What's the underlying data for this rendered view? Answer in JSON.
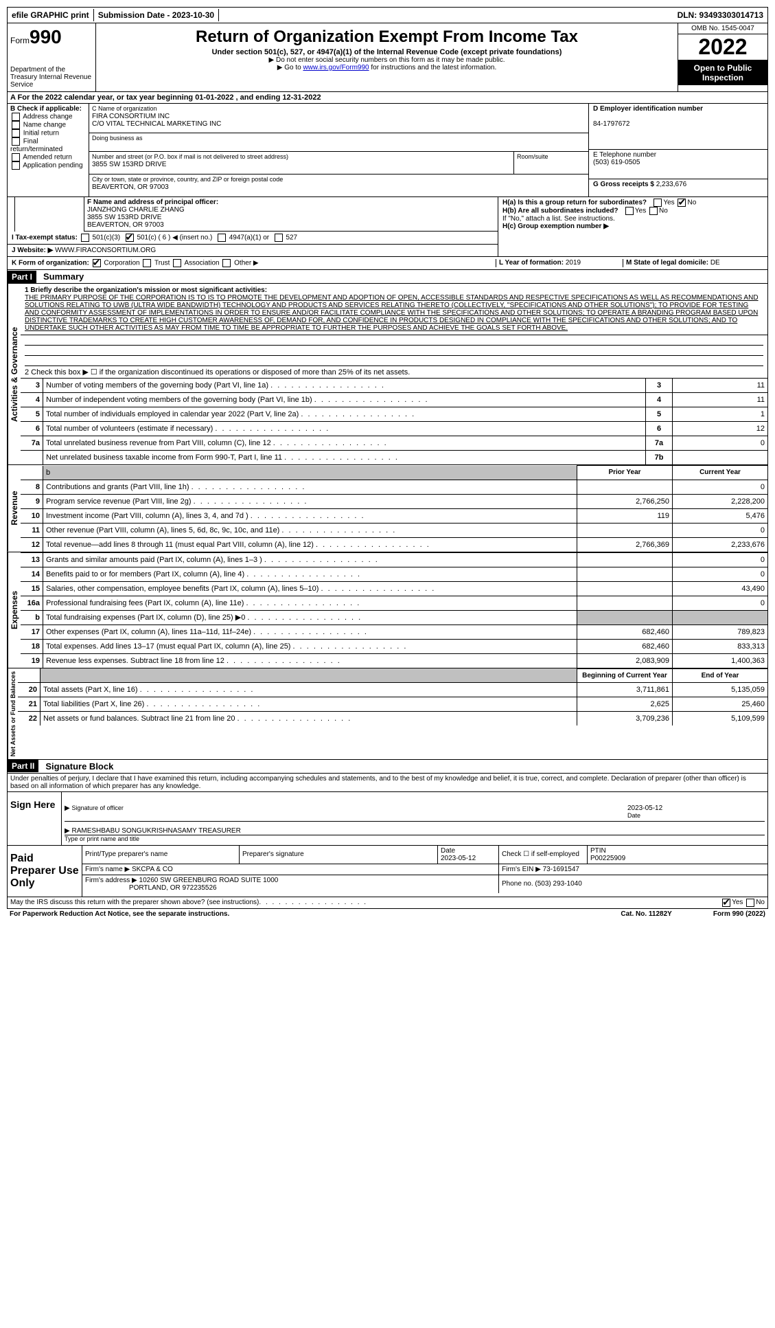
{
  "topbar": {
    "efile": "efile GRAPHIC print",
    "submission": "Submission Date - 2023-10-30",
    "dln": "DLN: 93493303014713"
  },
  "header": {
    "form_prefix": "Form",
    "form_number": "990",
    "dept": "Department of the Treasury Internal Revenue Service",
    "title": "Return of Organization Exempt From Income Tax",
    "subtitle": "Under section 501(c), 527, or 4947(a)(1) of the Internal Revenue Code (except private foundations)",
    "note1": "▶ Do not enter social security numbers on this form as it may be made public.",
    "note2_pre": "▶ Go to ",
    "note2_link": "www.irs.gov/Form990",
    "note2_post": " for instructions and the latest information.",
    "omb": "OMB No. 1545-0047",
    "year": "2022",
    "open": "Open to Public Inspection"
  },
  "sectionA": "A  For the 2022 calendar year, or tax year beginning 01-01-2022    , and ending 12-31-2022",
  "B": {
    "label": "B Check if applicable:",
    "items": [
      "Address change",
      "Name change",
      "Initial return",
      "Final return/terminated",
      "Amended return",
      "Application pending"
    ]
  },
  "C": {
    "name_label": "C Name of organization",
    "name1": "FIRA CONSORTIUM INC",
    "name2": "C/O VITAL TECHNICAL MARKETING INC",
    "dba_label": "Doing business as",
    "addr_label": "Number and street (or P.O. box if mail is not delivered to street address)",
    "addr": "3855 SW 153RD DRIVE",
    "room_label": "Room/suite",
    "city_label": "City or town, state or province, country, and ZIP or foreign postal code",
    "city": "BEAVERTON, OR  97003"
  },
  "D": {
    "label": "D Employer identification number",
    "ein": "84-1797672"
  },
  "E": {
    "label": "E Telephone number",
    "tel": "(503) 619-0505"
  },
  "G": {
    "label": "G Gross receipts $",
    "val": "2,233,676"
  },
  "F": {
    "label": "F Name and address of principal officer:",
    "name": "JIANZHONG CHARLIE ZHANG",
    "addr1": "3855 SW 153RD DRIVE",
    "addr2": "BEAVERTON, OR  97003"
  },
  "H": {
    "a_label": "H(a)  Is this a group return for subordinates?",
    "b_label": "H(b)  Are all subordinates included?",
    "note": "If \"No,\" attach a list. See instructions.",
    "c_label": "H(c)  Group exemption number ▶"
  },
  "I": {
    "label": "I    Tax-exempt status:",
    "opt1": "501(c)(3)",
    "opt2_pre": "501(c) (",
    "opt2_num": "6",
    "opt2_post": ") ◀ (insert no.)",
    "opt3": "4947(a)(1) or",
    "opt4": "527"
  },
  "J": {
    "label": "J   Website: ▶",
    "val": "WWW.FIRACONSORTIUM.ORG"
  },
  "K": {
    "label": "K Form of organization:",
    "opts": [
      "Corporation",
      "Trust",
      "Association",
      "Other ▶"
    ]
  },
  "L": {
    "label": "L Year of formation:",
    "val": "2019"
  },
  "M": {
    "label": "M State of legal domicile:",
    "val": "DE"
  },
  "part1": {
    "header": "Part I",
    "title": "Summary",
    "q1_label": "1   Briefly describe the organization's mission or most significant activities:",
    "mission": "THE PRIMARY PURPOSE OF THE CORPORATION IS TO IS TO PROMOTE THE DEVELOPMENT AND ADOPTION OF OPEN, ACCESSIBLE STANDARDS AND RESPECTIVE SPECIFICATIONS AS WELL AS RECOMMENDATIONS AND SOLUTIONS RELATING TO UWB (ULTRA WIDE BANDWIDTH) TECHNOLOGY AND PRODUCTS AND SERVICES RELATING THERETO (COLLECTIVELY, \"SPECIFICATIONS AND OTHER SOLUTIONS\"); TO PROVIDE FOR TESTING AND CONFORMITY ASSESSMENT OF IMPLEMENTATIONS IN ORDER TO ENSURE AND/OR FACILITATE COMPLIANCE WITH THE SPECIFICATIONS AND OTHER SOLUTIONS; TO OPERATE A BRANDING PROGRAM BASED UPON DISTINCTIVE TRADEMARKS TO CREATE HIGH CUSTOMER AWARENESS OF, DEMAND FOR, AND CONFIDENCE IN PRODUCTS DESIGNED IN COMPLIANCE WITH THE SPECIFICATIONS AND OTHER SOLUTIONS; AND TO UNDERTAKE SUCH OTHER ACTIVITIES AS MAY FROM TIME TO TIME BE APPROPRIATE TO FURTHER THE PURPOSES AND ACHIEVE THE GOALS SET FORTH ABOVE.",
    "q2": "2   Check this box ▶ ☐ if the organization discontinued its operations or disposed of more than 25% of its net assets.",
    "rows_gov": [
      {
        "n": "3",
        "d": "Number of voting members of the governing body (Part VI, line 1a)",
        "c": "3",
        "v": "11"
      },
      {
        "n": "4",
        "d": "Number of independent voting members of the governing body (Part VI, line 1b)",
        "c": "4",
        "v": "11"
      },
      {
        "n": "5",
        "d": "Total number of individuals employed in calendar year 2022 (Part V, line 2a)",
        "c": "5",
        "v": "1"
      },
      {
        "n": "6",
        "d": "Total number of volunteers (estimate if necessary)",
        "c": "6",
        "v": "12"
      },
      {
        "n": "7a",
        "d": "Total unrelated business revenue from Part VIII, column (C), line 12",
        "c": "7a",
        "v": "0"
      },
      {
        "n": "",
        "d": "Net unrelated business taxable income from Form 990-T, Part I, line 11",
        "c": "7b",
        "v": ""
      }
    ],
    "col_prior": "Prior Year",
    "col_current": "Current Year",
    "rows_rev": [
      {
        "n": "8",
        "d": "Contributions and grants (Part VIII, line 1h)",
        "p": "",
        "c": "0"
      },
      {
        "n": "9",
        "d": "Program service revenue (Part VIII, line 2g)",
        "p": "2,766,250",
        "c": "2,228,200"
      },
      {
        "n": "10",
        "d": "Investment income (Part VIII, column (A), lines 3, 4, and 7d )",
        "p": "119",
        "c": "5,476"
      },
      {
        "n": "11",
        "d": "Other revenue (Part VIII, column (A), lines 5, 6d, 8c, 9c, 10c, and 11e)",
        "p": "",
        "c": "0"
      },
      {
        "n": "12",
        "d": "Total revenue—add lines 8 through 11 (must equal Part VIII, column (A), line 12)",
        "p": "2,766,369",
        "c": "2,233,676"
      }
    ],
    "rows_exp": [
      {
        "n": "13",
        "d": "Grants and similar amounts paid (Part IX, column (A), lines 1–3 )",
        "p": "",
        "c": "0"
      },
      {
        "n": "14",
        "d": "Benefits paid to or for members (Part IX, column (A), line 4)",
        "p": "",
        "c": "0"
      },
      {
        "n": "15",
        "d": "Salaries, other compensation, employee benefits (Part IX, column (A), lines 5–10)",
        "p": "",
        "c": "43,490"
      },
      {
        "n": "16a",
        "d": "Professional fundraising fees (Part IX, column (A), line 11e)",
        "p": "",
        "c": "0"
      },
      {
        "n": "b",
        "d": "Total fundraising expenses (Part IX, column (D), line 25) ▶0",
        "p": "shaded",
        "c": "shaded"
      },
      {
        "n": "17",
        "d": "Other expenses (Part IX, column (A), lines 11a–11d, 11f–24e)",
        "p": "682,460",
        "c": "789,823"
      },
      {
        "n": "18",
        "d": "Total expenses. Add lines 13–17 (must equal Part IX, column (A), line 25)",
        "p": "682,460",
        "c": "833,313"
      },
      {
        "n": "19",
        "d": "Revenue less expenses. Subtract line 18 from line 12",
        "p": "2,083,909",
        "c": "1,400,363"
      }
    ],
    "col_begin": "Beginning of Current Year",
    "col_end": "End of Year",
    "rows_net": [
      {
        "n": "20",
        "d": "Total assets (Part X, line 16)",
        "p": "3,711,861",
        "c": "5,135,059"
      },
      {
        "n": "21",
        "d": "Total liabilities (Part X, line 26)",
        "p": "2,625",
        "c": "25,460"
      },
      {
        "n": "22",
        "d": "Net assets or fund balances. Subtract line 21 from line 20",
        "p": "3,709,236",
        "c": "5,109,599"
      }
    ]
  },
  "part2": {
    "header": "Part II",
    "title": "Signature Block",
    "declaration": "Under penalties of perjury, I declare that I have examined this return, including accompanying schedules and statements, and to the best of my knowledge and belief, it is true, correct, and complete. Declaration of preparer (other than officer) is based on all information of which preparer has any knowledge.",
    "sign_label": "Sign Here",
    "sig_officer": "Signature of officer",
    "sig_date": "2023-05-12",
    "sig_date_label": "Date",
    "officer_name": "RAMESHBABU SONGUKRISHNASAMY TREASURER",
    "officer_type_label": "Type or print name and title",
    "paid_label": "Paid Preparer Use Only",
    "prep_name_label": "Print/Type preparer's name",
    "prep_sig_label": "Preparer's signature",
    "prep_date_label": "Date",
    "prep_date": "2023-05-12",
    "prep_check": "Check ☐ if self-employed",
    "ptin_label": "PTIN",
    "ptin": "P00225909",
    "firm_name_label": "Firm's name    ▶",
    "firm_name": "SKCPA & CO",
    "firm_ein_label": "Firm's EIN ▶",
    "firm_ein": "73-1691547",
    "firm_addr_label": "Firm's address ▶",
    "firm_addr1": "10260 SW GREENBURG ROAD SUITE 1000",
    "firm_addr2": "PORTLAND, OR  972235526",
    "firm_phone_label": "Phone no.",
    "firm_phone": "(503) 293-1040"
  },
  "footer": {
    "discuss": "May the IRS discuss this return with the preparer shown above? (see instructions)",
    "paperwork": "For Paperwork Reduction Act Notice, see the separate instructions.",
    "cat": "Cat. No. 11282Y",
    "form": "Form 990 (2022)"
  },
  "labels": {
    "gov": "Activities & Governance",
    "rev": "Revenue",
    "exp": "Expenses",
    "net": "Net Assets or Fund Balances",
    "yes": "Yes",
    "no": "No"
  }
}
